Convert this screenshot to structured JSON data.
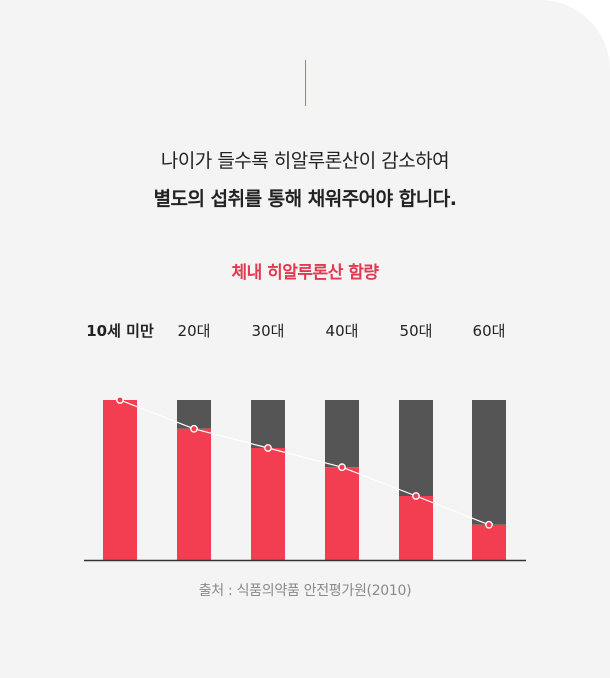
{
  "headline": {
    "line1": "나이가 들수록 히알루론산이 감소하여",
    "line2": "별도의 섭취를 통해 채워주어야 합니다."
  },
  "colors": {
    "accent": "#f33d50",
    "remainder": "#555555",
    "title": "#e23850",
    "line": "#ffffff"
  },
  "chart_data": {
    "type": "bar",
    "title": "체내 히알루론산 함량",
    "categories": [
      "10세 미만",
      "20대",
      "30대",
      "40대",
      "50대",
      "60대"
    ],
    "series": [
      {
        "values": [
          100,
          82,
          70,
          58,
          40,
          22
        ]
      }
    ],
    "ylim": [
      0,
      100
    ],
    "stacked_remainder": true,
    "trend_line": true,
    "grid": false,
    "legend": "none"
  },
  "source": "출처 : 식품의약품 안전평가원(2010)"
}
